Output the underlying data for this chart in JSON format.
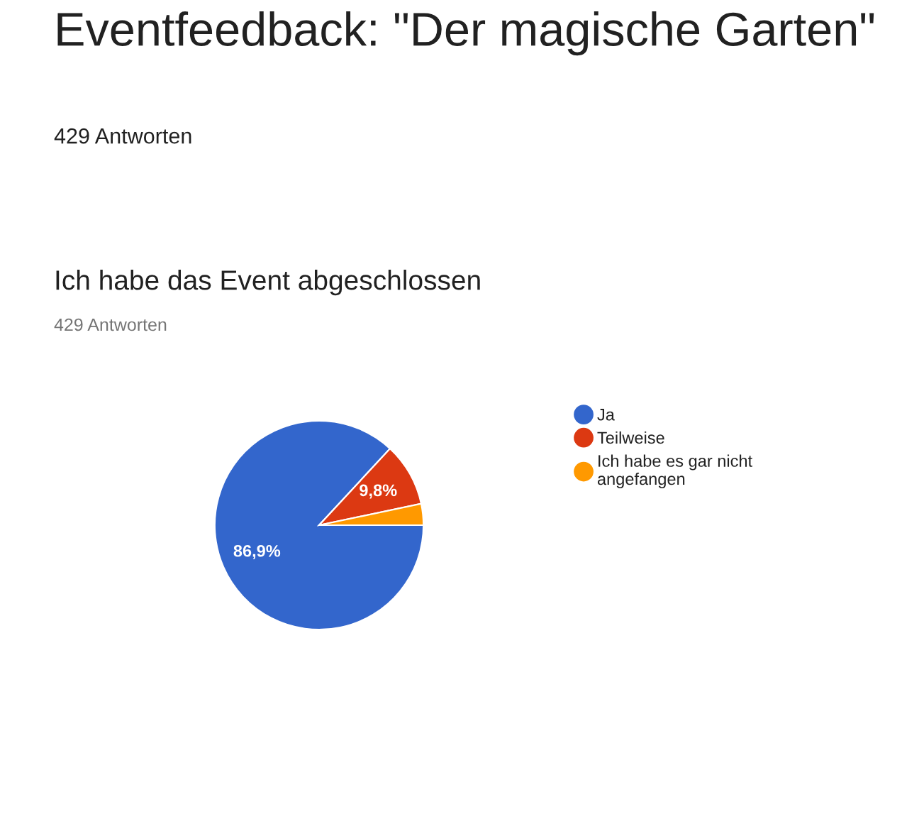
{
  "chart_data": {
    "type": "pie",
    "title": "Eventfeedback: \"Der magische Garten\"",
    "subtitle": "429 Antworten",
    "annotations": [
      "Ich habe das Event abgeschlossen",
      "429 Antworten"
    ],
    "categories": [
      "Ja",
      "Teilweise",
      "Ich habe es gar nicht angefangen"
    ],
    "values": [
      86.9,
      9.8,
      3.3
    ],
    "colors": [
      "#3366cc",
      "#dc3912",
      "#ff9900"
    ],
    "value_labels": [
      "86,9%",
      "9,8%",
      null
    ],
    "legend": "right",
    "marker": "circle"
  }
}
